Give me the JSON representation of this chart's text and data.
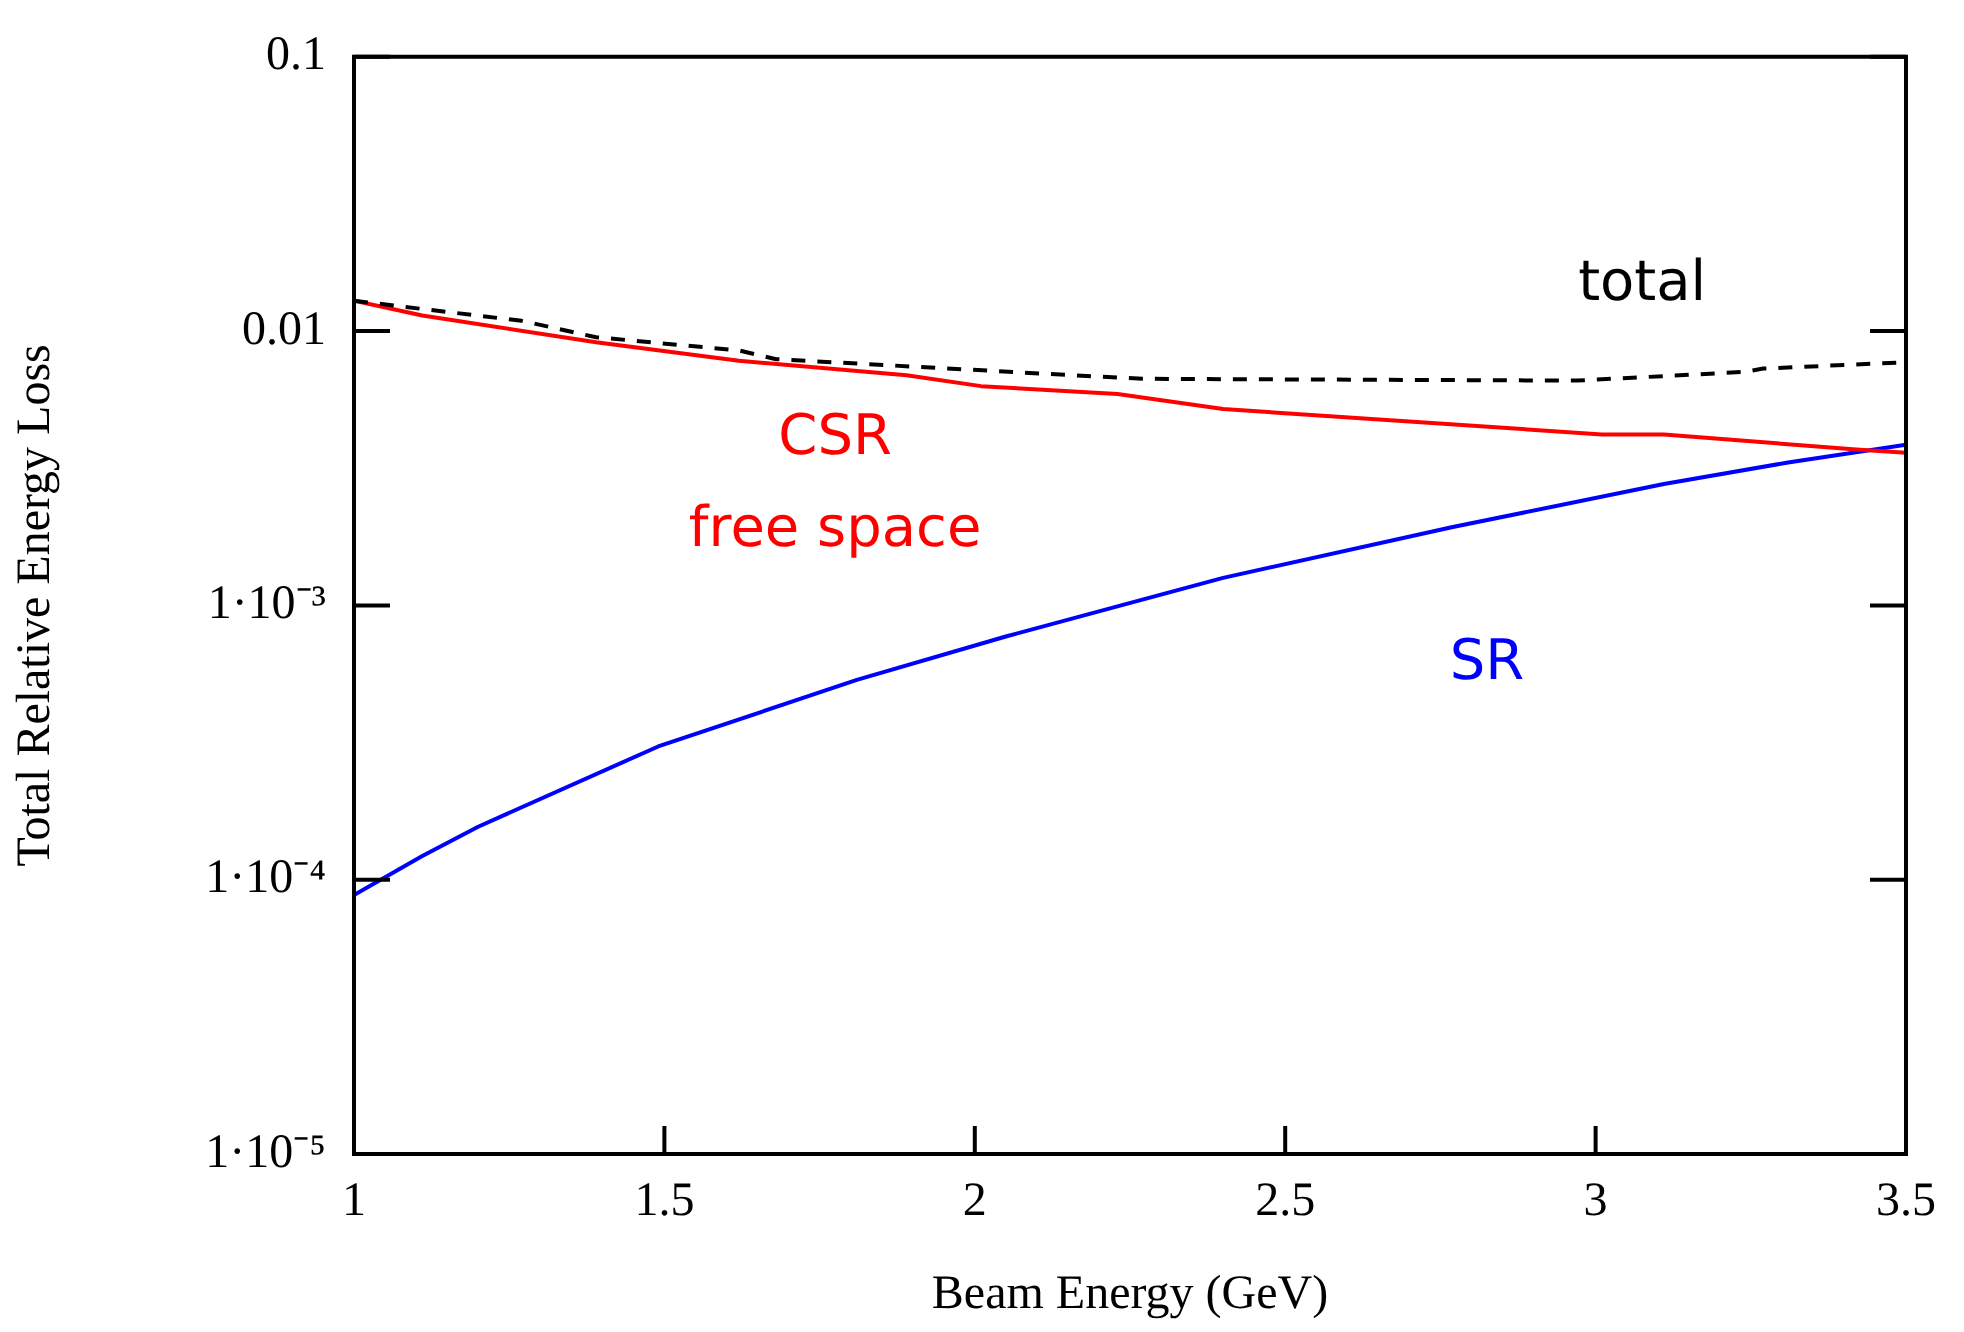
{
  "chart_data": {
    "type": "line",
    "xlabel": "Beam Energy (GeV)",
    "ylabel": "Total Relative Energy Loss",
    "log": "y",
    "grid": false,
    "legend": false,
    "marker": "none",
    "xlim": [
      1,
      3.5
    ],
    "xticks": [
      1,
      1.5,
      2,
      2.5,
      3,
      3.5
    ],
    "ylim": [
      1e-05,
      0.1
    ],
    "yticks": [
      {
        "value": 1e-05,
        "label": "1·10⁻⁵"
      },
      {
        "value": 0.0001,
        "label": "1·10⁻⁴"
      },
      {
        "value": 0.001,
        "label": "1·10⁻³"
      },
      {
        "value": 0.01,
        "label": "0.01"
      },
      {
        "value": 0.1,
        "label": "0.1"
      }
    ],
    "series": [
      {
        "name": "total",
        "color": "#000000",
        "line_style": "dashed",
        "x": [
          1,
          1.27,
          1.39,
          1.62,
          1.68,
          2.16,
          2.27,
          2.97,
          3.24,
          3.27,
          3.5
        ],
        "values": [
          0.0129,
          0.0109,
          0.0095,
          0.0085,
          0.0079,
          0.0069,
          0.0067,
          0.0066,
          0.0071,
          0.0073,
          0.0077
        ]
      },
      {
        "name": "CSR\nfree space",
        "color": "#ff0000",
        "line_style": "solid",
        "x": [
          1,
          1.11,
          1.39,
          1.62,
          1.89,
          2.01,
          2.23,
          2.4,
          3.01,
          3.11,
          3.42,
          3.5
        ],
        "values": [
          0.0129,
          0.0114,
          0.0091,
          0.0078,
          0.0069,
          0.0063,
          0.0059,
          0.0052,
          0.0042,
          0.0042,
          0.0037,
          0.0036
        ]
      },
      {
        "name": "SR",
        "color": "#0000ff",
        "line_style": "solid",
        "x": [
          1,
          1.11,
          1.2,
          1.49,
          1.81,
          2.05,
          2.27,
          2.4,
          2.77,
          3.11,
          3.31,
          3.5
        ],
        "values": [
          8.8e-05,
          0.000122,
          0.000156,
          0.000306,
          0.000535,
          0.00077,
          0.00105,
          0.00126,
          0.00193,
          0.00277,
          0.00332,
          0.00385
        ]
      }
    ]
  }
}
